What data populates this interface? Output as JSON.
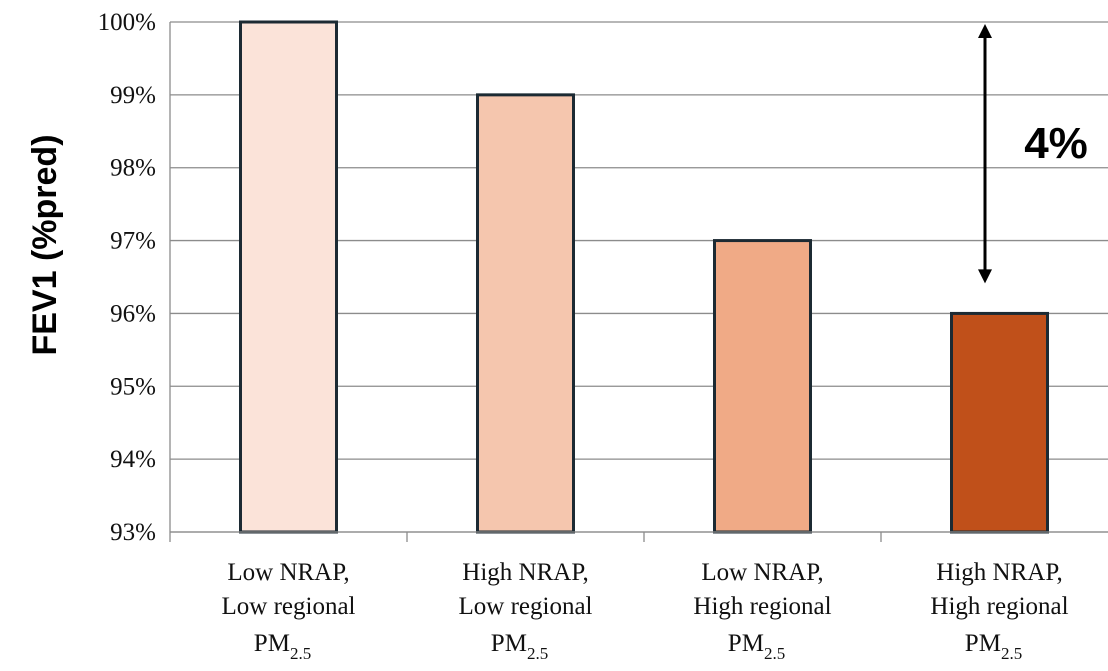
{
  "chart_data": {
    "type": "bar",
    "ylabel": "FEV1 (%pred)",
    "ylim": [
      93,
      100
    ],
    "yticks": [
      {
        "value": 100,
        "label": "100%"
      },
      {
        "value": 99,
        "label": "99%"
      },
      {
        "value": 98,
        "label": "98%"
      },
      {
        "value": 97,
        "label": "97%"
      },
      {
        "value": 96,
        "label": "96%"
      },
      {
        "value": 95,
        "label": "95%"
      },
      {
        "value": 94,
        "label": "94%"
      },
      {
        "value": 93,
        "label": "93%"
      }
    ],
    "grid": true,
    "categories": [
      {
        "lines": [
          "Low NRAP,",
          "Low regional"
        ],
        "pm": "PM",
        "pm_sub": "2.5"
      },
      {
        "lines": [
          "High NRAP,",
          "Low regional"
        ],
        "pm": "PM",
        "pm_sub": "2.5"
      },
      {
        "lines": [
          "Low NRAP,",
          "High regional"
        ],
        "pm": "PM",
        "pm_sub": "2.5"
      },
      {
        "lines": [
          "High NRAP,",
          "High regional"
        ],
        "pm": "PM",
        "pm_sub": "2.5"
      }
    ],
    "values": [
      100,
      99,
      97,
      96
    ],
    "colors": [
      "#fbe3d9",
      "#f5c6ae",
      "#f0aa86",
      "#c0501a"
    ],
    "annotation": {
      "text": "4%",
      "from": 100,
      "to": 96
    }
  }
}
